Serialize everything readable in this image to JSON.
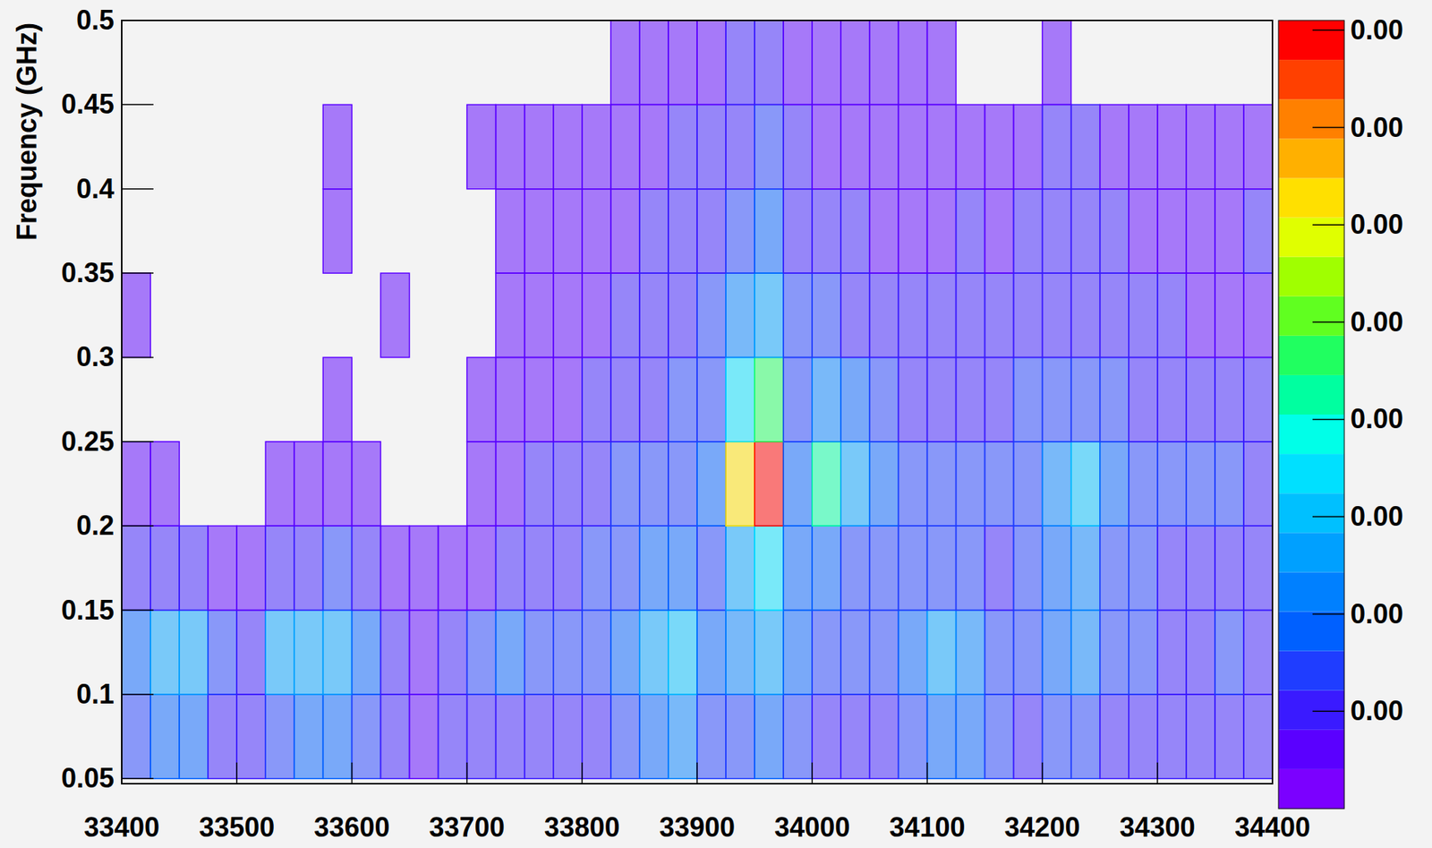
{
  "chart_data": {
    "type": "heatmap",
    "ylabel": "Frequency (GHz)",
    "xlim": [
      33400,
      34400
    ],
    "ylim": [
      0.047,
      0.5
    ],
    "xticks": [
      33400,
      33500,
      33600,
      33700,
      33800,
      33900,
      34000,
      34100,
      34200,
      34300,
      34400
    ],
    "yticks": [
      0.05,
      0.1,
      0.15,
      0.2,
      0.25,
      0.3,
      0.35,
      0.4,
      0.45,
      0.5
    ],
    "x_bins": [
      33400,
      33425,
      33450,
      33475,
      33500,
      33525,
      33550,
      33575,
      33600,
      33625,
      33650,
      33675,
      33700,
      33725,
      33750,
      33775,
      33800,
      33825,
      33850,
      33875,
      33900,
      33925,
      33950,
      33975,
      34000,
      34025,
      34050,
      34075,
      34100,
      34125,
      34150,
      34175,
      34200,
      34225,
      34250,
      34275,
      34300,
      34325,
      34350,
      34375,
      34400
    ],
    "y_bins": [
      0.05,
      0.1,
      0.15,
      0.2,
      0.25,
      0.3,
      0.35,
      0.4,
      0.45,
      0.5
    ],
    "values": [
      [
        0.0014,
        0.002,
        0.0018,
        0.0012,
        0.0009,
        0.0014,
        0.002,
        0.002,
        0.0016,
        0.001,
        0.0008,
        0.0009,
        0.001,
        0.0012,
        0.0012,
        0.001,
        0.0012,
        0.0014,
        0.0018,
        0.0022,
        0.0016,
        0.0014,
        0.0018,
        0.0014,
        0.0012,
        0.0012,
        0.001,
        0.0014,
        0.0018,
        0.002,
        0.0016,
        0.0012,
        0.0014,
        0.0016,
        0.0012,
        0.0012,
        0.0012,
        0.001,
        0.0012,
        0.001
      ],
      [
        0.0018,
        0.0028,
        0.0026,
        0.0014,
        0.001,
        0.0026,
        0.0028,
        0.0026,
        0.0018,
        0.001,
        0.0008,
        0.001,
        0.0014,
        0.0018,
        0.0016,
        0.0014,
        0.0016,
        0.002,
        0.0026,
        0.003,
        0.002,
        0.0022,
        0.0028,
        0.0018,
        0.0016,
        0.0014,
        0.0014,
        0.002,
        0.0026,
        0.0022,
        0.0014,
        0.0016,
        0.002,
        0.0022,
        0.0016,
        0.0014,
        0.0012,
        0.0012,
        0.0014,
        0.001
      ],
      [
        0.001,
        0.0012,
        0.001,
        0.0008,
        0.0006,
        0.001,
        0.0012,
        0.0014,
        0.001,
        0.0006,
        0.0005,
        0.0006,
        0.0008,
        0.001,
        0.0012,
        0.001,
        0.0014,
        0.0016,
        0.002,
        0.0018,
        0.0016,
        0.0028,
        0.0036,
        0.002,
        0.0018,
        0.0016,
        0.0014,
        0.0014,
        0.0016,
        0.0014,
        0.0012,
        0.0014,
        0.002,
        0.0024,
        0.0016,
        0.0014,
        0.0012,
        0.0012,
        0.0012,
        0.001
      ],
      [
        0.0006,
        0.0006,
        0.0004,
        0.0004,
        0.0004,
        0.0005,
        0.0006,
        0.0006,
        0.0005,
        0.0004,
        0.0003,
        0.0004,
        0.0006,
        0.0008,
        0.001,
        0.001,
        0.0012,
        0.0014,
        0.0016,
        0.0016,
        0.0018,
        0.0062,
        0.0079,
        0.002,
        0.0044,
        0.0026,
        0.002,
        0.0016,
        0.0016,
        0.0014,
        0.0014,
        0.0016,
        0.0022,
        0.003,
        0.002,
        0.0016,
        0.0014,
        0.0014,
        0.0014,
        0.0012
      ],
      [
        0.0004,
        0.0003,
        0.0002,
        0.0003,
        0.0003,
        0.0004,
        0.0004,
        0.0005,
        0.0004,
        0.0004,
        0.0003,
        0.0004,
        0.0005,
        0.0006,
        0.0008,
        0.0008,
        0.001,
        0.001,
        0.0012,
        0.0014,
        0.0016,
        0.0034,
        0.0048,
        0.0016,
        0.0022,
        0.002,
        0.0014,
        0.0012,
        0.0012,
        0.0012,
        0.0012,
        0.0014,
        0.0016,
        0.0016,
        0.0014,
        0.0012,
        0.0012,
        0.0012,
        0.001,
        0.001
      ],
      [
        0.0005,
        0.0003,
        0.0002,
        0.0002,
        0.0003,
        0.0002,
        0.0003,
        0.0004,
        0.0003,
        0.0005,
        0.0003,
        0.0004,
        0.0004,
        0.0005,
        0.0006,
        0.0007,
        0.0008,
        0.0009,
        0.001,
        0.0012,
        0.0014,
        0.0022,
        0.0026,
        0.0016,
        0.0014,
        0.0012,
        0.001,
        0.001,
        0.001,
        0.001,
        0.001,
        0.001,
        0.0012,
        0.0012,
        0.001,
        0.001,
        0.001,
        0.0008,
        0.0008,
        0.0008
      ],
      [
        0.0004,
        0.0004,
        0.0004,
        0.0002,
        0.0002,
        0.0002,
        0.0003,
        0.0006,
        0.0004,
        0.0003,
        0.0002,
        0.0003,
        0.0004,
        0.0005,
        0.0005,
        0.0006,
        0.0006,
        0.0008,
        0.0009,
        0.001,
        0.0012,
        0.0016,
        0.0018,
        0.0012,
        0.001,
        0.0009,
        0.0008,
        0.0008,
        0.0008,
        0.0009,
        0.0008,
        0.0009,
        0.001,
        0.001,
        0.0009,
        0.0008,
        0.0008,
        0.0007,
        0.0007,
        0.0009
      ],
      [
        0.0003,
        0.0004,
        0.0004,
        0.0002,
        0.0002,
        0.0002,
        0.0004,
        0.0005,
        0.0004,
        0.0003,
        0.0002,
        0.0003,
        0.0005,
        0.0005,
        0.0005,
        0.0005,
        0.0006,
        0.0007,
        0.0008,
        0.0009,
        0.001,
        0.0012,
        0.0014,
        0.001,
        0.0008,
        0.0008,
        0.0007,
        0.0008,
        0.0007,
        0.0008,
        0.0006,
        0.0008,
        0.0009,
        0.0009,
        0.0008,
        0.0007,
        0.0007,
        0.0007,
        0.0006,
        0.0008
      ],
      [
        0,
        0,
        0,
        0,
        0,
        0,
        0,
        0.0002,
        0,
        0,
        0,
        0,
        0,
        0,
        0,
        0,
        0.0003,
        0.0005,
        0.0006,
        0.0007,
        0.0008,
        0.001,
        0.0012,
        0.0008,
        0.0006,
        0.0006,
        0.0005,
        0.0006,
        0.0005,
        0.0004,
        0.0003,
        0.0004,
        0.0005,
        0.0004,
        0.0004,
        0.0003,
        0.0003,
        0.0003,
        0.0003,
        0.0002
      ]
    ],
    "zlim": [
      0,
      0.0081
    ],
    "zticks": [
      {
        "value": 0.001,
        "label": "0.00"
      },
      {
        "value": 0.002,
        "label": "0.00"
      },
      {
        "value": 0.003,
        "label": "0.00"
      },
      {
        "value": 0.004,
        "label": "0.00"
      },
      {
        "value": 0.005,
        "label": "0.00"
      },
      {
        "value": 0.006,
        "label": "0.00"
      },
      {
        "value": 0.007,
        "label": "0.00"
      },
      {
        "value": 0.008,
        "label": "0.00"
      }
    ]
  }
}
